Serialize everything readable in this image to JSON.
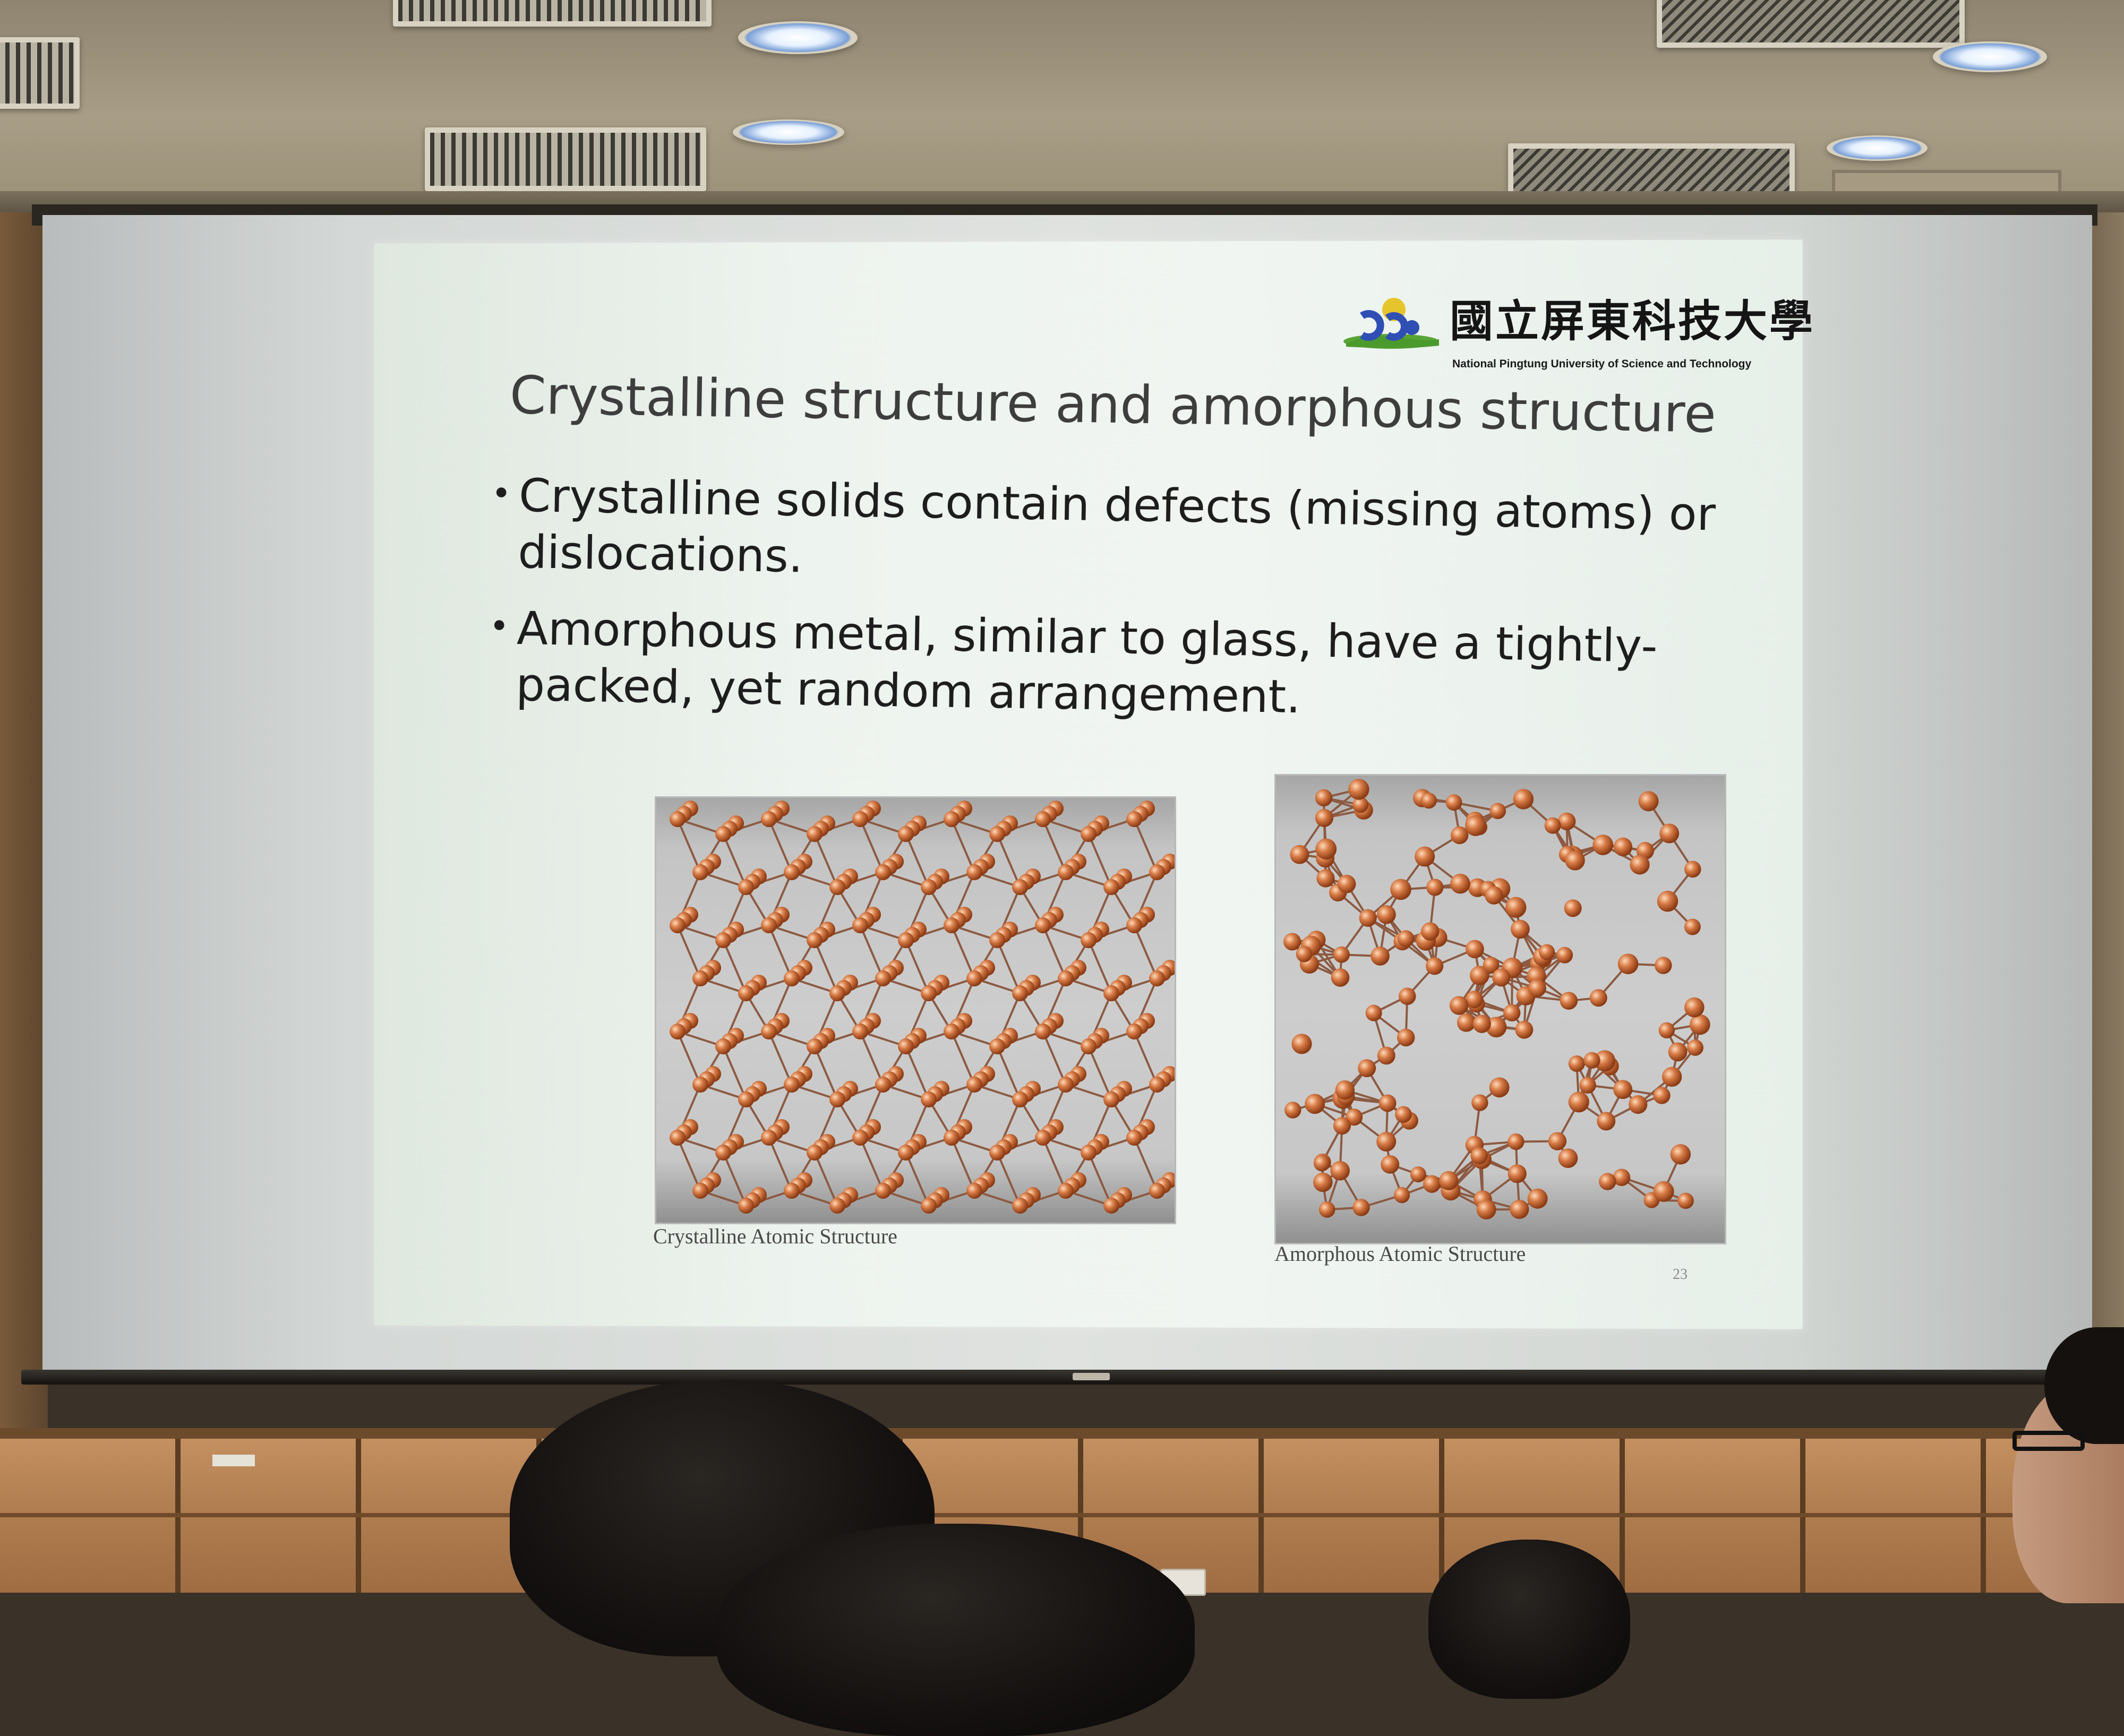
{
  "slide": {
    "university_name_zh": "國立屏東科技大學",
    "university_name_en": "National Pingtung University of Science and Technology",
    "title": "Crystalline structure and amorphous structure",
    "bullets": [
      "Crystalline solids contain defects (missing atoms) or dislocations.",
      "Amorphous metal, similar to glass, have a tightly-packed, yet random arrangement."
    ],
    "figures": [
      {
        "caption": "Crystalline Atomic Structure"
      },
      {
        "caption": "Amorphous Atomic Structure"
      }
    ],
    "page_number": "23"
  },
  "colors": {
    "slide_background": "#edf3ee",
    "title_text": "#3d3d3d",
    "body_text": "#1d1d1d",
    "atom": "#d67a45",
    "logo_blue": "#2f4fb4",
    "logo_yellow": "#e6c52c",
    "logo_green": "#5aa437"
  },
  "icons": {
    "logo": "university-logo",
    "bullet": "bullet-dot"
  }
}
